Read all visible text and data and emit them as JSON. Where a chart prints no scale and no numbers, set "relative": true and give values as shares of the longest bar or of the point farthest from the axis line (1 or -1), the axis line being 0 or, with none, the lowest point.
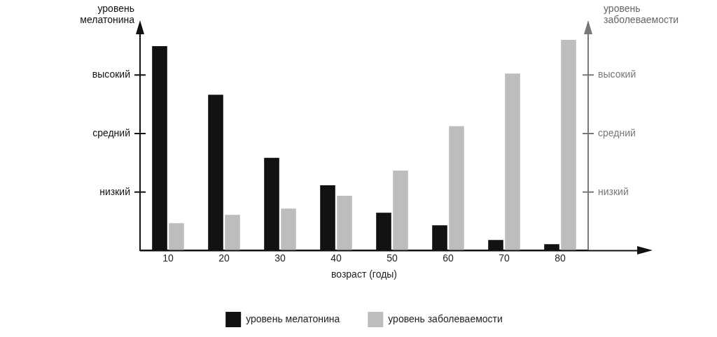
{
  "chart_data": {
    "type": "bar",
    "relative": true,
    "categories": [
      "10",
      "20",
      "30",
      "40",
      "50",
      "60",
      "70",
      "80"
    ],
    "series": [
      {
        "name": "уровень мелатонина",
        "color": "#111111",
        "values": [
          0.97,
          0.74,
          0.44,
          0.31,
          0.18,
          0.12,
          0.05,
          0.03
        ]
      },
      {
        "name": "уровень заболеваемости",
        "color": "#bdbdbd",
        "axis": "y2",
        "values": [
          0.13,
          0.17,
          0.2,
          0.26,
          0.38,
          0.59,
          0.84,
          1
        ]
      }
    ],
    "ylabel": "уровень мелатонина",
    "y2label": "уровень заболеваемости",
    "xlabel": "возраст (годы)",
    "annotations": [
      "низкий",
      "средний",
      "высокий",
      "низкий",
      "средний",
      "высокий"
    ],
    "grid": false,
    "legend": "bottom"
  }
}
